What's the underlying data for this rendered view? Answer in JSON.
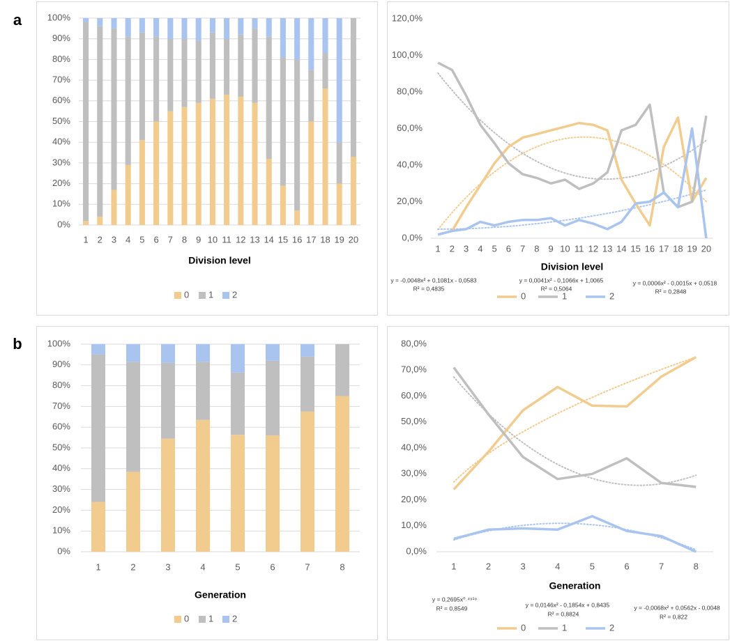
{
  "panel_labels": [
    "a",
    "b"
  ],
  "chart_data": [
    {
      "type": "bar",
      "stacked": true,
      "grid": true,
      "x_label": "Division level",
      "categories": [
        1,
        2,
        3,
        4,
        5,
        6,
        7,
        8,
        9,
        10,
        11,
        12,
        13,
        14,
        15,
        16,
        17,
        18,
        19,
        20
      ],
      "ylim": [
        0,
        100
      ],
      "yticks": [
        {
          "value": 0,
          "label": "0%"
        },
        {
          "value": 10,
          "label": "10%"
        },
        {
          "value": 20,
          "label": "20%"
        },
        {
          "value": 30,
          "label": "30%"
        },
        {
          "value": 40,
          "label": "40%"
        },
        {
          "value": 50,
          "label": "50%"
        },
        {
          "value": 60,
          "label": "60%"
        },
        {
          "value": 70,
          "label": "70%"
        },
        {
          "value": 80,
          "label": "80%"
        },
        {
          "value": 90,
          "label": "90%"
        },
        {
          "value": 100,
          "label": "100%"
        }
      ],
      "series": [
        {
          "name": "0",
          "color": "#f2cc8f",
          "values": [
            2,
            4,
            17,
            29,
            41,
            50,
            55,
            57,
            59,
            61,
            63,
            62,
            59,
            32,
            19,
            7,
            50,
            66,
            20,
            33
          ]
        },
        {
          "name": "1",
          "color": "#bfbfbf",
          "values": [
            96,
            92,
            78,
            62,
            52,
            41,
            35,
            33,
            30,
            32,
            27,
            30,
            36,
            59,
            62,
            73,
            25,
            17,
            20,
            67
          ]
        },
        {
          "name": "2",
          "color": "#a9c4ee",
          "values": [
            2,
            4,
            5,
            9,
            7,
            9,
            10,
            10,
            11,
            7,
            10,
            8,
            5,
            9,
            19,
            20,
            25,
            17,
            60,
            0
          ]
        }
      ]
    },
    {
      "type": "line",
      "grid": false,
      "x_label": "Division level",
      "categories": [
        1,
        2,
        3,
        4,
        5,
        6,
        7,
        8,
        9,
        10,
        11,
        12,
        13,
        14,
        15,
        16,
        17,
        18,
        19,
        20
      ],
      "ylim": [
        0,
        120
      ],
      "yticks": [
        {
          "value": 0,
          "label": "0,0%"
        },
        {
          "value": 20,
          "label": "20,0%"
        },
        {
          "value": 40,
          "label": "40,0%"
        },
        {
          "value": 60,
          "label": "60,0%"
        },
        {
          "value": 80,
          "label": "80,0%"
        },
        {
          "value": 100,
          "label": "100,0%"
        },
        {
          "value": 120,
          "label": "120,0%"
        }
      ],
      "series": [
        {
          "name": "0",
          "color": "#f2cc8f",
          "trend": "poly2",
          "trend_equation": "y = -0,0048x² + 0,1081x - 0,0583",
          "trend_r2": "R² = 0,4835",
          "values": [
            2,
            4,
            17,
            29,
            41,
            50,
            55,
            57,
            59,
            61,
            63,
            62,
            59,
            32,
            19,
            7,
            50,
            66,
            20,
            33
          ]
        },
        {
          "name": "1",
          "color": "#bfbfbf",
          "trend": "poly2",
          "trend_equation": "y = 0,0041x² - 0,1066x + 1,0065",
          "trend_r2": "R² = 0,5064",
          "values": [
            96,
            92,
            78,
            62,
            52,
            41,
            35,
            33,
            30,
            32,
            27,
            30,
            36,
            59,
            62,
            73,
            25,
            17,
            20,
            67
          ]
        },
        {
          "name": "2",
          "color": "#a9c4ee",
          "trend": "poly2",
          "trend_equation": "y = 0,0006x² - 0,0015x + 0,0518",
          "trend_r2": "R² = 0,2848",
          "values": [
            2,
            4,
            5,
            9,
            7,
            9,
            10,
            10,
            11,
            7,
            10,
            8,
            5,
            9,
            19,
            20,
            25,
            17,
            60,
            0
          ]
        }
      ]
    },
    {
      "type": "bar",
      "stacked": true,
      "grid": true,
      "x_label": "Generation",
      "categories": [
        1,
        2,
        3,
        4,
        5,
        6,
        7,
        8
      ],
      "ylim": [
        0,
        100
      ],
      "yticks": [
        {
          "value": 0,
          "label": "0%"
        },
        {
          "value": 10,
          "label": "10%"
        },
        {
          "value": 20,
          "label": "20%"
        },
        {
          "value": 30,
          "label": "30%"
        },
        {
          "value": 40,
          "label": "40%"
        },
        {
          "value": 50,
          "label": "50%"
        },
        {
          "value": 60,
          "label": "60%"
        },
        {
          "value": 70,
          "label": "70%"
        },
        {
          "value": 80,
          "label": "80%"
        },
        {
          "value": 90,
          "label": "90%"
        },
        {
          "value": 100,
          "label": "100%"
        }
      ],
      "series": [
        {
          "name": "0",
          "color": "#f2cc8f",
          "values": [
            24,
            38.5,
            54.5,
            63.5,
            56.3,
            56,
            67.5,
            75
          ]
        },
        {
          "name": "1",
          "color": "#bfbfbf",
          "values": [
            71,
            53,
            36.5,
            28,
            30,
            36,
            26.5,
            25
          ]
        },
        {
          "name": "2",
          "color": "#a9c4ee",
          "values": [
            5,
            8.5,
            9,
            8.5,
            13.7,
            8,
            6,
            0
          ]
        }
      ]
    },
    {
      "type": "line",
      "grid": false,
      "x_label": "Generation",
      "categories": [
        1,
        2,
        3,
        4,
        5,
        6,
        7,
        8
      ],
      "ylim": [
        0,
        80
      ],
      "yticks": [
        {
          "value": 0,
          "label": "0,0%"
        },
        {
          "value": 10,
          "label": "10,0%"
        },
        {
          "value": 20,
          "label": "20,0%"
        },
        {
          "value": 30,
          "label": "30,0%"
        },
        {
          "value": 40,
          "label": "40,0%"
        },
        {
          "value": 50,
          "label": "50,0%"
        },
        {
          "value": 60,
          "label": "60,0%"
        },
        {
          "value": 70,
          "label": "70,0%"
        },
        {
          "value": 80,
          "label": "80,0%"
        }
      ],
      "series": [
        {
          "name": "0",
          "color": "#f2cc8f",
          "trend": "power",
          "trend_equation": "y = 0,2695x⁰˒⁴⁹¹⁹",
          "trend_r2": "R² = 0,8549",
          "values": [
            24,
            38.5,
            54.5,
            63.5,
            56.3,
            56,
            67.5,
            75
          ]
        },
        {
          "name": "1",
          "color": "#bfbfbf",
          "trend": "poly2",
          "trend_equation": "y = 0,0146x² - 0,1854x + 0,8435",
          "trend_r2": "R² = 0,8824",
          "values": [
            71,
            53,
            36.5,
            28,
            30,
            36,
            26.5,
            25
          ]
        },
        {
          "name": "2",
          "color": "#a9c4ee",
          "trend": "poly2",
          "trend_equation": "y = -0,0068x² + 0,0562x - 0,0048",
          "trend_r2": "R² = 0,822",
          "values": [
            5,
            8.5,
            9,
            8.5,
            13.7,
            8,
            6,
            0
          ]
        }
      ]
    }
  ]
}
